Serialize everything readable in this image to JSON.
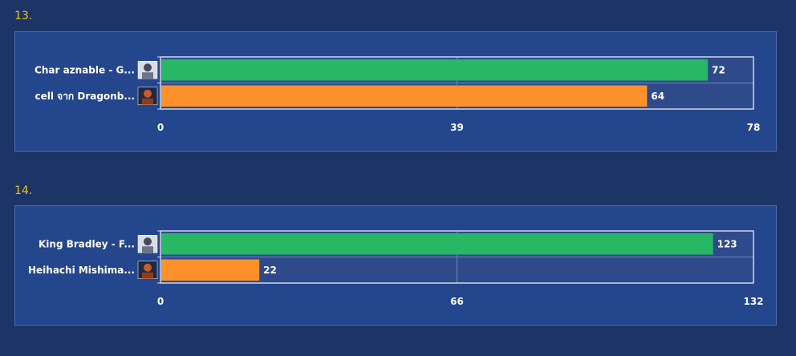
{
  "chart_data": [
    {
      "type": "bar",
      "orientation": "horizontal",
      "number": "13.",
      "categories": [
        "Char aznable - G...",
        "cell จาก Dragonb..."
      ],
      "values": [
        72,
        64
      ],
      "colors": [
        "#27b765",
        "#fe912b"
      ],
      "xlim": [
        0,
        78
      ],
      "ticks": [
        "0",
        "39",
        "78"
      ],
      "avatar_icons": [
        "character-avatar-icon",
        "character-avatar-icon"
      ]
    },
    {
      "type": "bar",
      "orientation": "horizontal",
      "number": "14.",
      "categories": [
        "King Bradley - F...",
        "Heihachi Mishima..."
      ],
      "values": [
        123,
        22
      ],
      "colors": [
        "#27b765",
        "#fe912b"
      ],
      "xlim": [
        0,
        132
      ],
      "ticks": [
        "0",
        "66",
        "132"
      ],
      "avatar_icons": [
        "character-avatar-icon",
        "character-avatar-icon"
      ]
    }
  ]
}
